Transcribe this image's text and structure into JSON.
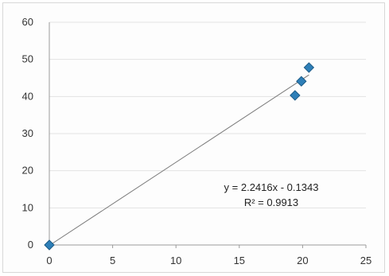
{
  "chart_data": {
    "type": "scatter",
    "title": "",
    "xlabel": "",
    "ylabel": "",
    "xlim": [
      0,
      25
    ],
    "ylim": [
      0,
      60
    ],
    "xticks": [
      "0",
      "5",
      "10",
      "15",
      "20",
      "25"
    ],
    "yticks": [
      "0",
      "10",
      "20",
      "30",
      "40",
      "50",
      "60"
    ],
    "grid": "horizontal",
    "legend": "none",
    "series": [
      {
        "marker": "diamond",
        "color": "#2e7fb8",
        "points": [
          {
            "x": 0,
            "y": 0
          },
          {
            "x": 19.4,
            "y": 40.3
          },
          {
            "x": 19.9,
            "y": 44.1
          },
          {
            "x": 20.5,
            "y": 47.8
          }
        ]
      }
    ],
    "trendline": {
      "type": "linear",
      "slope": 2.2416,
      "intercept": -0.1343,
      "x_range": [
        0,
        20.5
      ],
      "color": "#7a7a7a",
      "equation": "y = 2.2416x - 0.1343",
      "r_squared": "R² = 0.9913"
    }
  }
}
